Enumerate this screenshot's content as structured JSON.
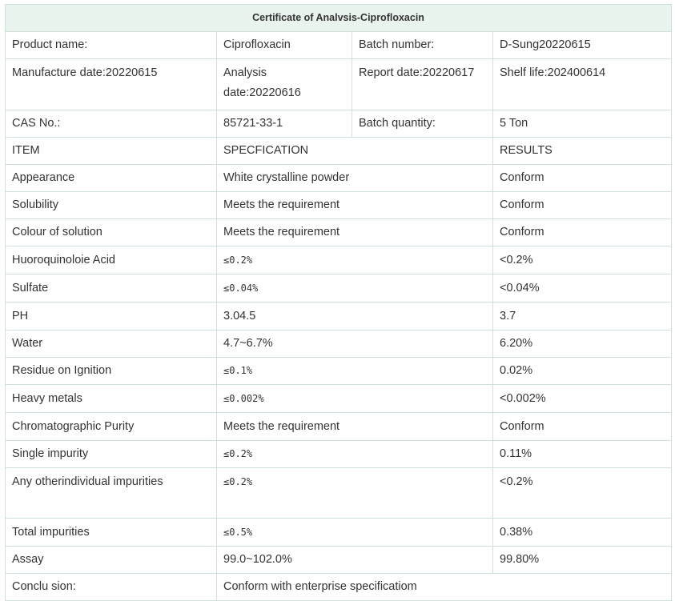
{
  "title": "Certificate of Analvsis-Ciprofloxacin",
  "header": {
    "product_name_label": "Product name:",
    "product_name_value": "Ciprofloxacin",
    "batch_number_label": "Batch number:",
    "batch_number_value": "D-Sung20220615",
    "manufacture_date": "Manufacture date:20220615",
    "analysis_date": "Analysis date:20220616",
    "report_date": "Report date:20220617",
    "shelf_life": "Shelf life:202400614",
    "cas_label": "CAS No.:",
    "cas_value": "85721-33-1",
    "batch_quantity_label": "Batch quantity:",
    "batch_quantity_value": "5 Ton"
  },
  "columns": {
    "item": "ITEM",
    "specification": "SPECFICATION",
    "results": "RESULTS"
  },
  "rows": [
    {
      "item": "Appearance",
      "spec": "White crystalline powder",
      "result": "Conform"
    },
    {
      "item": "Solubility",
      "spec": "Meets the requirement",
      "result": "Conform"
    },
    {
      "item": "Colour of solution",
      "spec": "Meets the requirement",
      "result": "Conform"
    },
    {
      "item": "Huoroquinoloie Acid",
      "spec": "≤0.2%",
      "result": "<0.2%"
    },
    {
      "item": "Sulfate",
      "spec": "≤0.04%",
      "result": "<0.04%"
    },
    {
      "item": "PH",
      "spec": "3.04.5",
      "result": "3.7"
    },
    {
      "item": "Water",
      "spec": "4.7~6.7%",
      "result": "6.20%"
    },
    {
      "item": "Residue on Ignition",
      "spec": "≤0.1%",
      "result": "0.02%"
    },
    {
      "item": "Heavy metals",
      "spec": "≤0.002%",
      "result": "<0.002%"
    },
    {
      "item": "Chromatographic Purity",
      "spec": "Meets the requirement",
      "result": "Conform"
    },
    {
      "item": "Single impurity",
      "spec": "≤0.2%",
      "result": "0.11%"
    },
    {
      "item": "Any otherindividual impurities",
      "spec": "≤0.2%",
      "result": "<0.2%"
    },
    {
      "item": "Total impurities",
      "spec": "≤0.5%",
      "result": "0.38%"
    },
    {
      "item": "Assay",
      "spec": "99.0~102.0%",
      "result": "99.80%"
    }
  ],
  "conclusion": {
    "label": "Conclu sion:",
    "value": "Conform with enterprise specificatiom"
  }
}
